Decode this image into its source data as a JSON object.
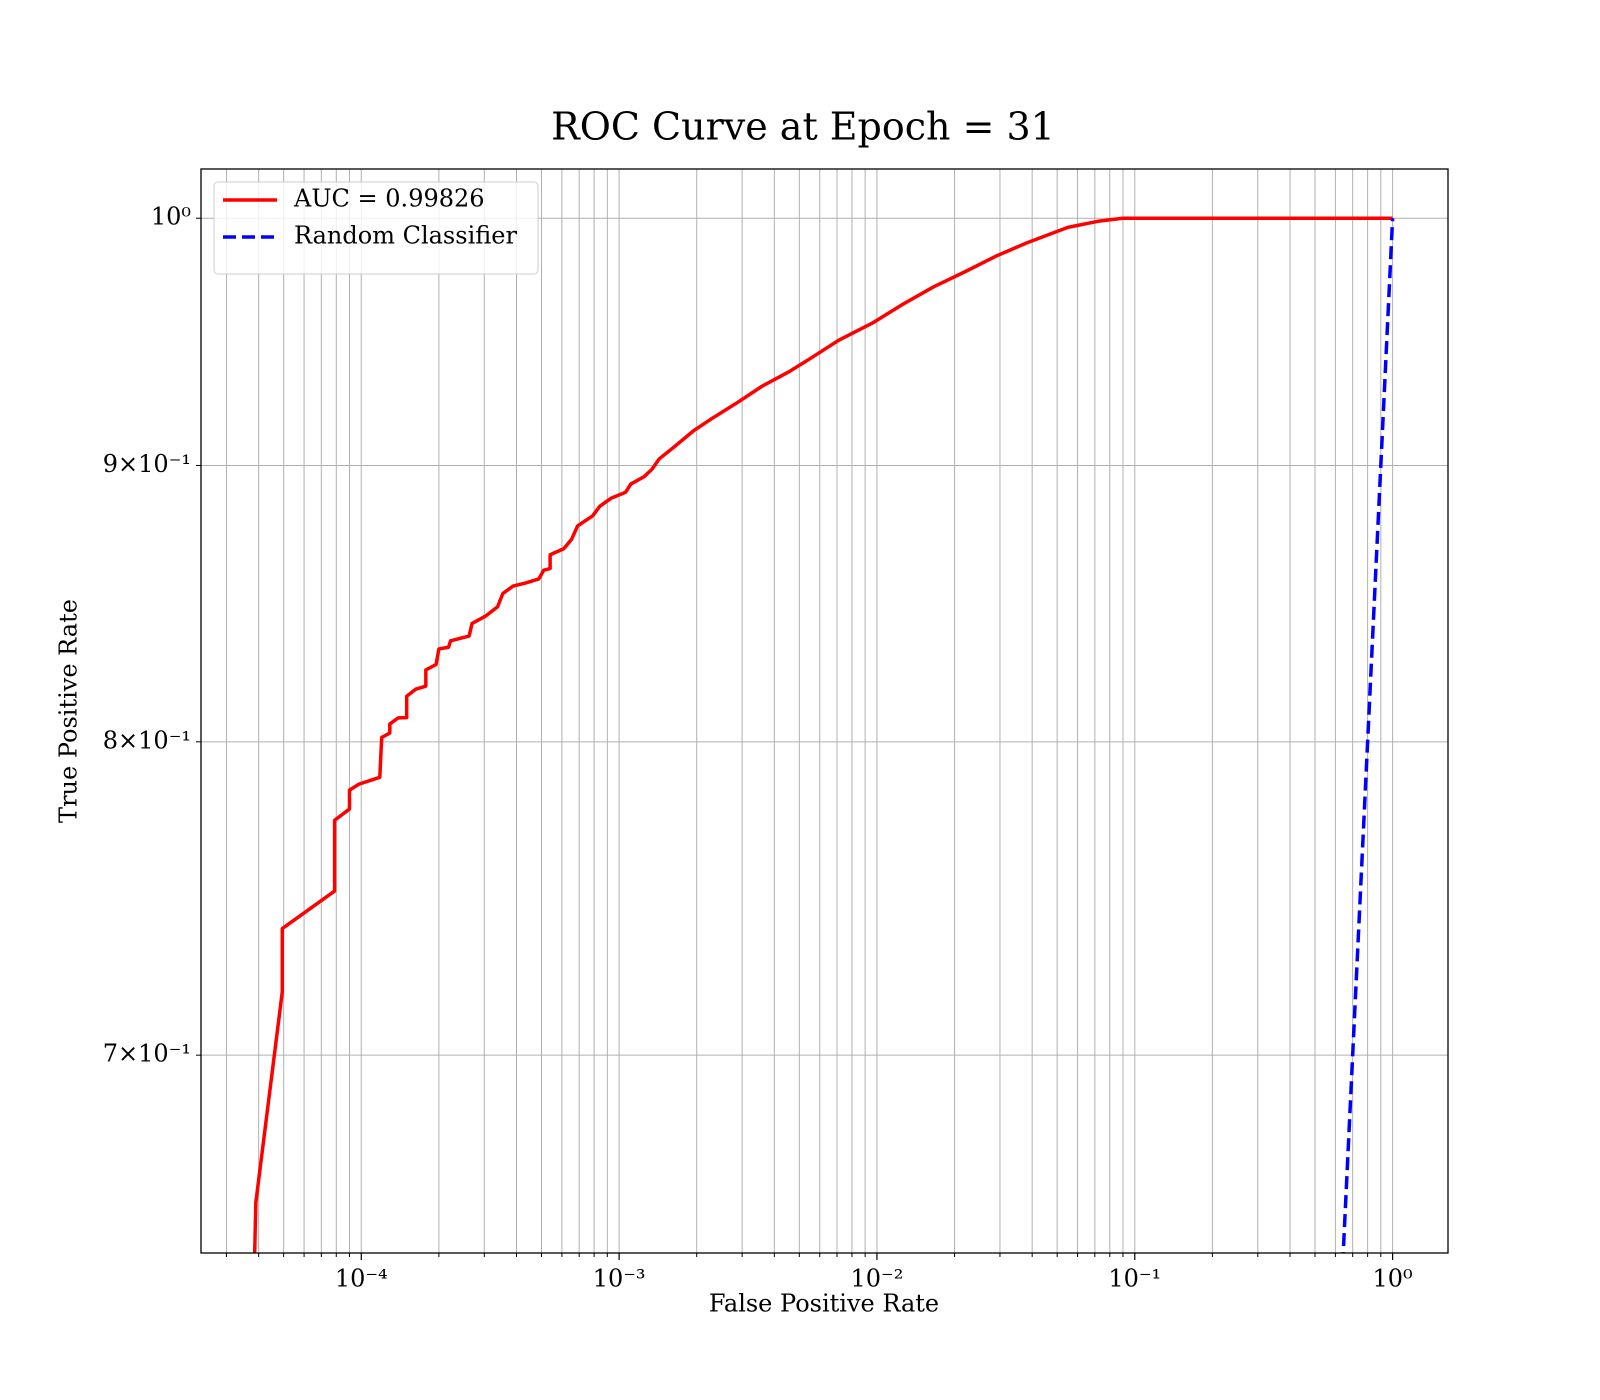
{
  "chart_data": {
    "type": "line",
    "title": "ROC Curve at Epoch = 31",
    "xlabel": "False Positive Rate",
    "ylabel": "True Positive Rate",
    "xscale": "log",
    "yscale": "log",
    "grid": true,
    "legend": "upper left",
    "xlim": [
      2.39e-05,
      1.64
    ],
    "ylim": [
      0.6434,
      1.0212
    ],
    "xticks": [
      {
        "value": 0.0001,
        "label": "10⁻⁴"
      },
      {
        "value": 0.001,
        "label": "10⁻³"
      },
      {
        "value": 0.01,
        "label": "10⁻²"
      },
      {
        "value": 0.1,
        "label": "10⁻¹"
      },
      {
        "value": 1,
        "label": "10⁰"
      }
    ],
    "xminorticks": [
      3e-05,
      4e-05,
      5e-05,
      6e-05,
      7e-05,
      8e-05,
      9e-05,
      0.0002,
      0.0003,
      0.0004,
      0.0005,
      0.0006,
      0.0007,
      0.0008,
      0.0009,
      0.002,
      0.003,
      0.004,
      0.005,
      0.006,
      0.007,
      0.008,
      0.009,
      0.02,
      0.03,
      0.04,
      0.05,
      0.06,
      0.07,
      0.08,
      0.09,
      0.2,
      0.3,
      0.4,
      0.5,
      0.6,
      0.7,
      0.8,
      0.9
    ],
    "yticks": [
      {
        "value": 1,
        "label": "10⁰"
      },
      {
        "value": 0.9,
        "label": "9×10⁻¹"
      },
      {
        "value": 0.8,
        "label": "8×10⁻¹"
      },
      {
        "value": 0.7,
        "label": "7×10⁻¹"
      }
    ],
    "series": [
      {
        "name": "AUC = 0.99826",
        "color": "#ff0000",
        "linestyle": "solid",
        "x": [
          3.85e-05,
          3.9e-05,
          4.94e-05,
          4.94e-05,
          7.88e-05,
          7.88e-05,
          9e-05,
          9e-05,
          9.8e-05,
          0.000118,
          0.00012,
          0.000129,
          0.000129,
          0.000139,
          0.00015,
          0.00015,
          0.000163,
          0.000178,
          0.000178,
          0.000195,
          0.0002,
          0.000218,
          0.000222,
          0.000262,
          0.000269,
          0.000303,
          0.000338,
          0.000354,
          0.000388,
          0.000433,
          0.000488,
          0.00051,
          0.00054,
          0.00054,
          0.00061,
          0.000655,
          0.00069,
          0.00079,
          0.00084,
          0.00093,
          0.00106,
          0.00111,
          0.00125,
          0.00134,
          0.00143,
          0.00162,
          0.00195,
          0.0023,
          0.0029,
          0.00357,
          0.0046,
          0.0055,
          0.0071,
          0.0096,
          0.0126,
          0.0166,
          0.022,
          0.029,
          0.038,
          0.055,
          0.072,
          0.09,
          0.105,
          1
        ],
        "values": [
          0.64,
          0.6574,
          0.7192,
          0.7388,
          0.7507,
          0.7737,
          0.7774,
          0.7837,
          0.7857,
          0.788,
          0.8015,
          0.803,
          0.8061,
          0.8082,
          0.8083,
          0.8157,
          0.8182,
          0.8192,
          0.8249,
          0.8268,
          0.8323,
          0.8329,
          0.8352,
          0.8369,
          0.8414,
          0.844,
          0.8474,
          0.8522,
          0.8549,
          0.856,
          0.8575,
          0.8607,
          0.8613,
          0.8664,
          0.8686,
          0.8722,
          0.8771,
          0.8809,
          0.8844,
          0.8875,
          0.8898,
          0.8929,
          0.8957,
          0.8985,
          0.9025,
          0.9068,
          0.9135,
          0.9183,
          0.9247,
          0.9308,
          0.9369,
          0.9419,
          0.9493,
          0.9563,
          0.964,
          0.9712,
          0.9775,
          0.984,
          0.9895,
          0.9961,
          0.9987,
          1,
          1,
          1
        ]
      },
      {
        "name": "Random Classifier",
        "color": "#0000ff",
        "linestyle": "dashed",
        "x": [
          0.6,
          1
        ],
        "values": [
          0.6,
          1
        ]
      }
    ]
  }
}
